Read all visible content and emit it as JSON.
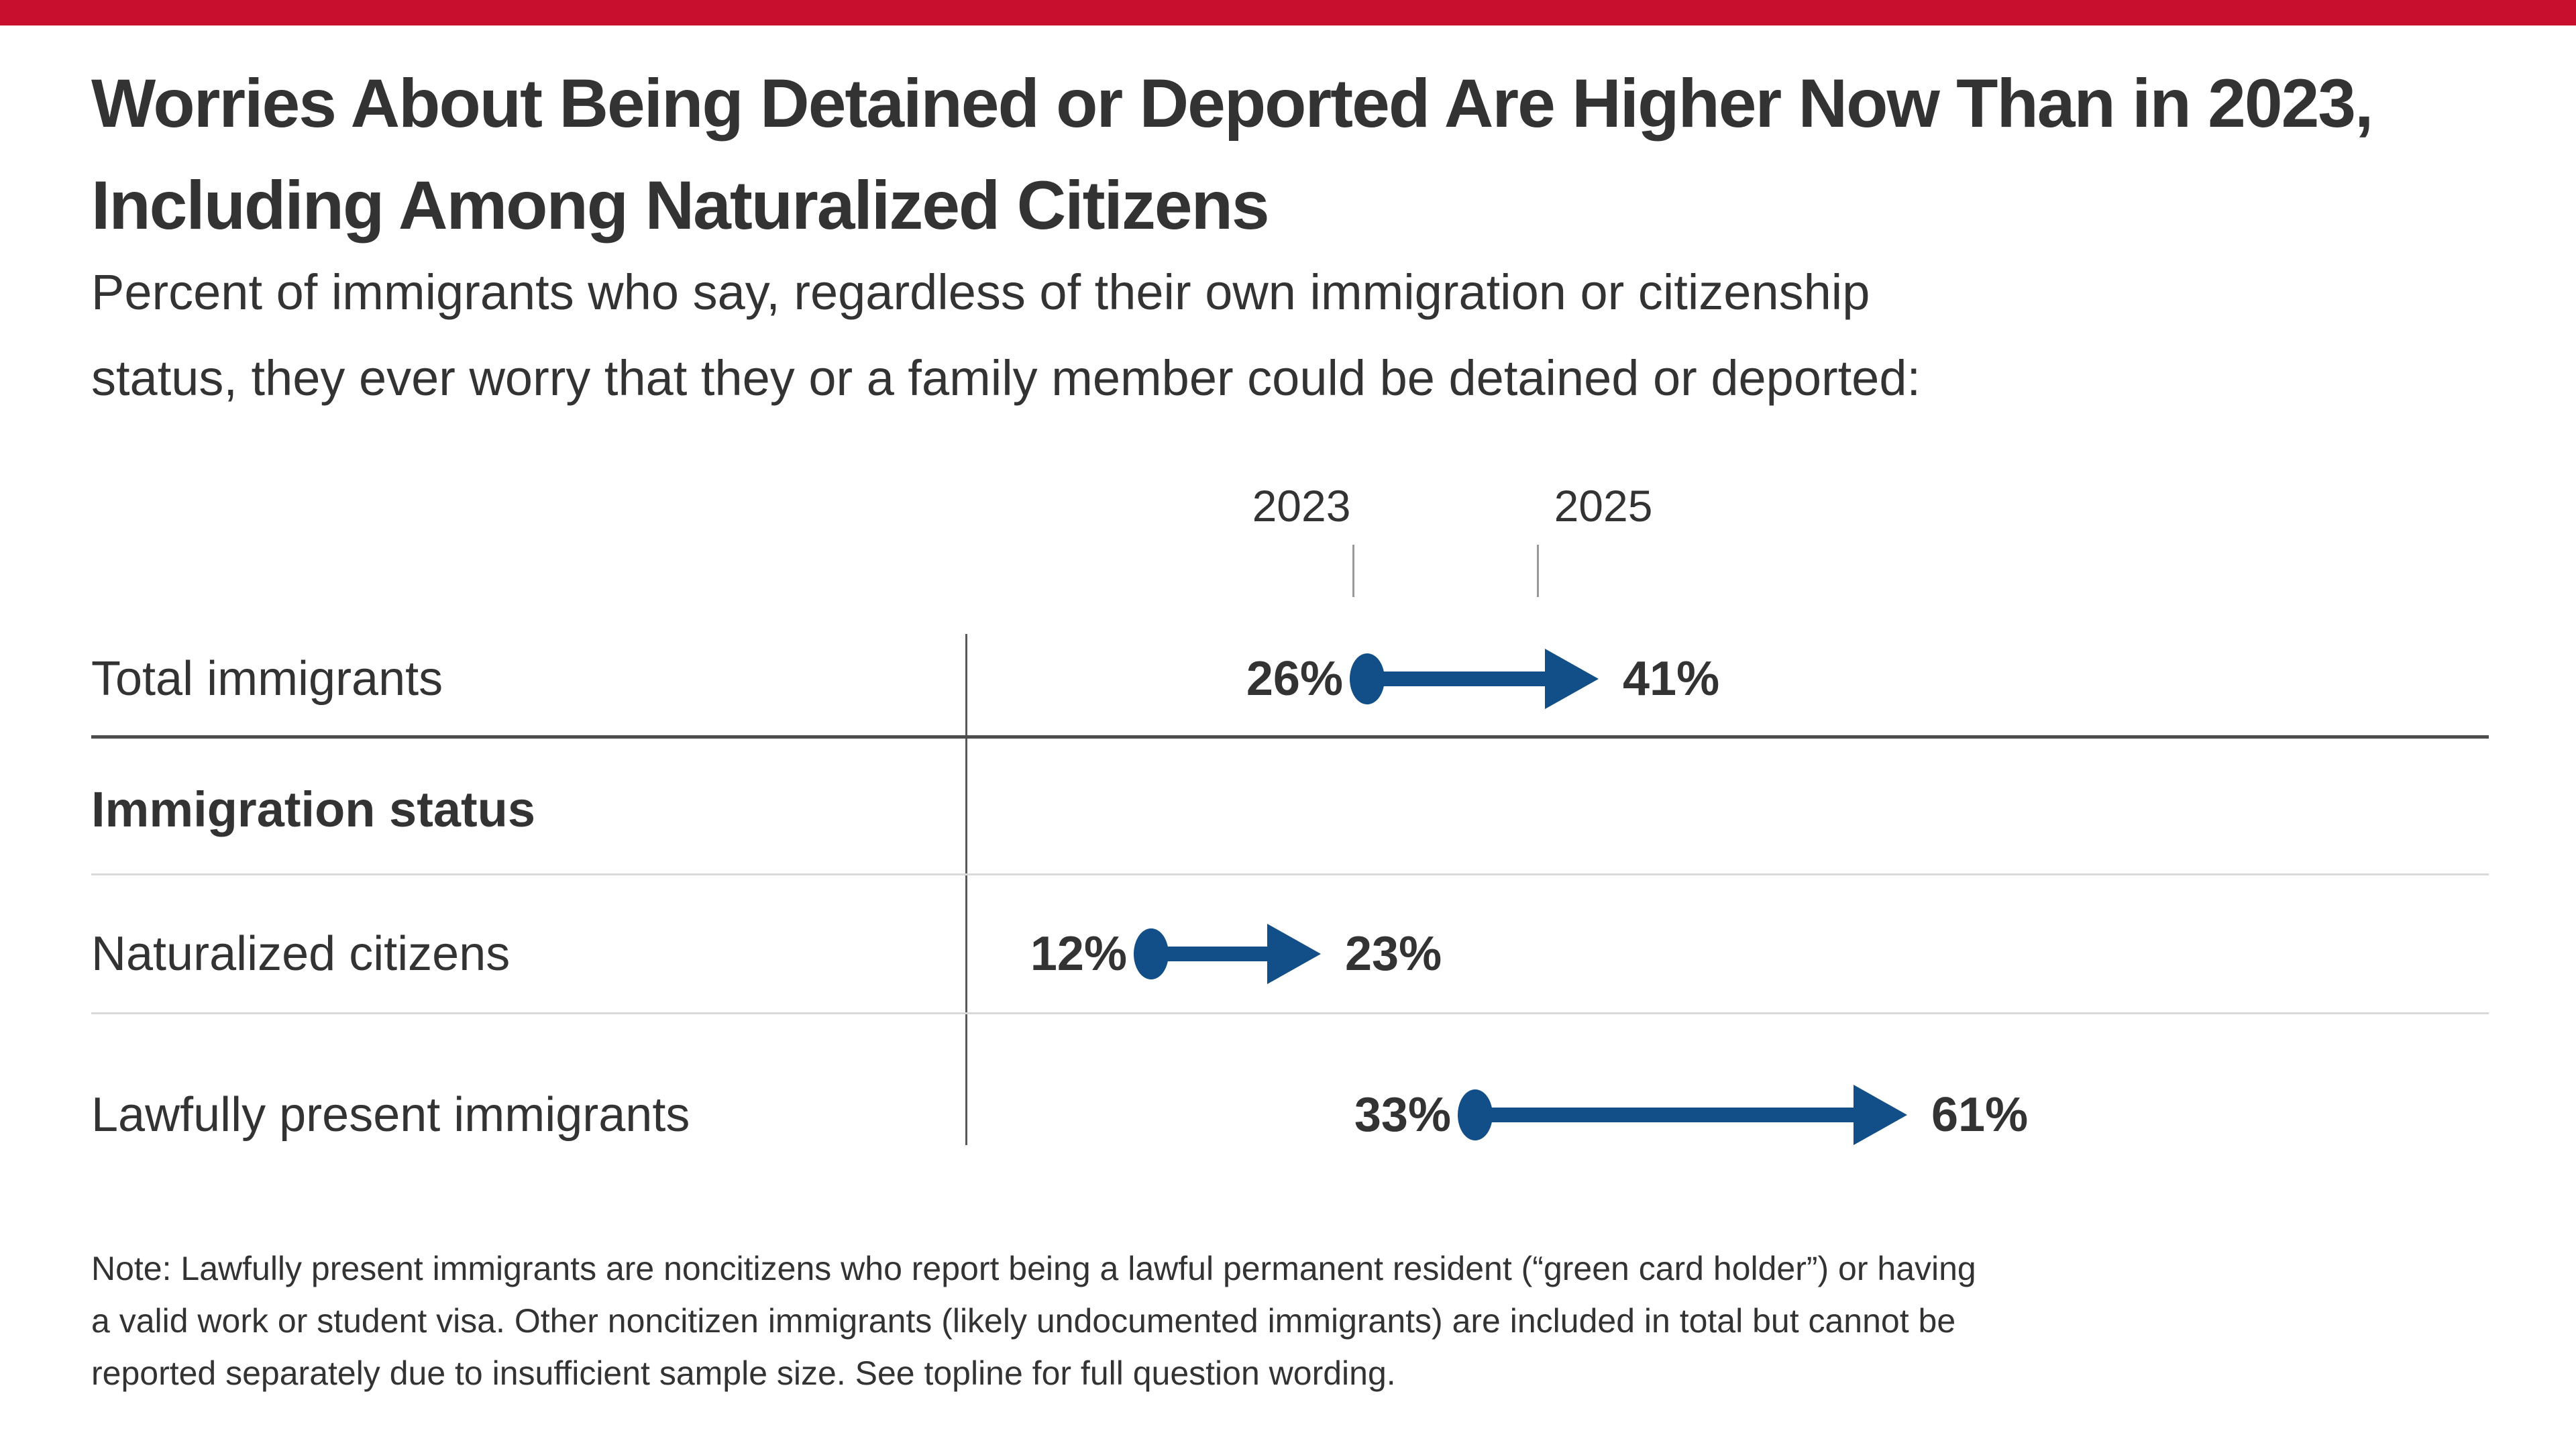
{
  "brand": {
    "top_bar_color": "#C8102E"
  },
  "header": {
    "title_line1": "Worries About Being Detained or Deported Are Higher Now Than in 2023,",
    "title_line2": "Including Among Naturalized Citizens",
    "subtitle_line1": "Percent of immigrants who say, regardless of their own immigration or citizenship",
    "subtitle_line2": "status, they ever worry that they or a family member could be detained or deported:"
  },
  "chart_data": {
    "type": "dumbbell-arrow",
    "title": "Worries About Being Detained or Deported Are Higher Now Than in 2023, Including Among Naturalized Citizens",
    "unit": "percent",
    "col_headers": [
      "2023",
      "2025"
    ],
    "section_label": "Immigration status",
    "rows": [
      {
        "label": "Total immigrants",
        "start": 26,
        "end": 41,
        "start_label": "26%",
        "end_label": "41%"
      },
      {
        "label": "Naturalized citizens",
        "start": 12,
        "end": 23,
        "start_label": "12%",
        "end_label": "23%"
      },
      {
        "label": "Lawfully present immigrants",
        "start": 33,
        "end": 61,
        "start_label": "33%",
        "end_label": "61%"
      }
    ],
    "axis": {
      "min": 0,
      "baseline_at_zero": true
    },
    "legend_position": "top-ticks",
    "colors": {
      "arrow": "#124E87",
      "text": "#333333",
      "grid_dark": "#4d4d4d",
      "grid_light": "#d9d9d9"
    }
  },
  "note": {
    "line1": "Note: Lawfully present immigrants are noncitizens who report being a lawful permanent resident (“green card holder”) or having",
    "line2": "a valid work or student visa. Other noncitizen immigrants (likely undocumented immigrants) are included in total but cannot be",
    "line3": "reported separately due to insufficient sample size. See topline for full question wording."
  }
}
